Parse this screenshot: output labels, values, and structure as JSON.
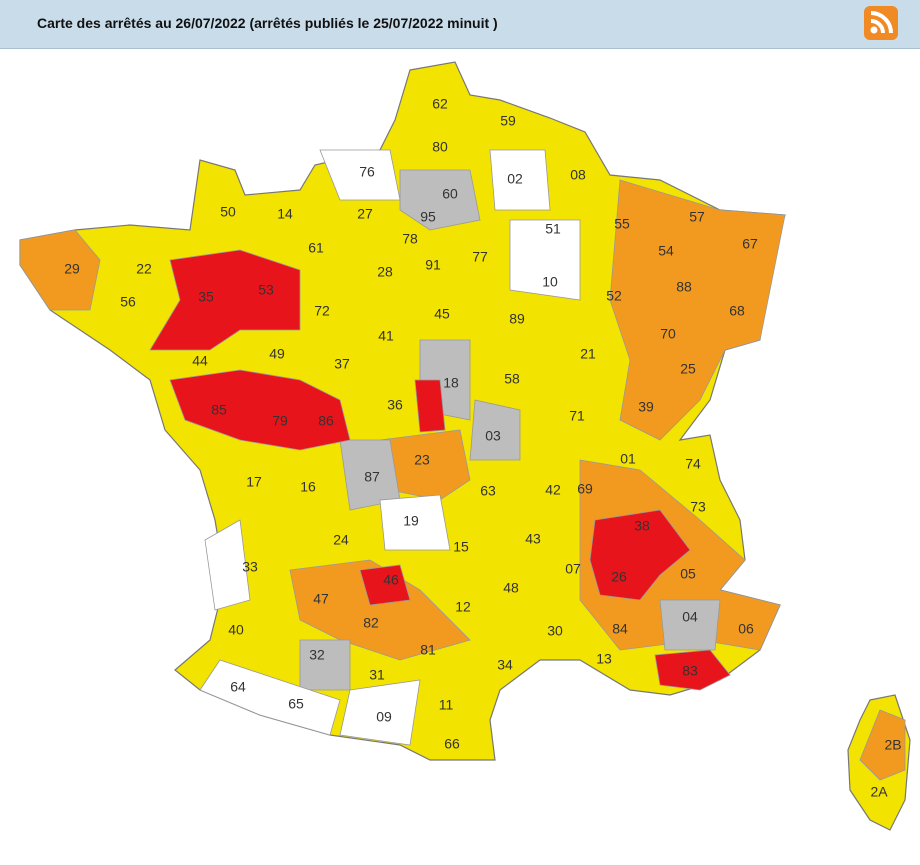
{
  "header": {
    "title": "Carte des arrêtés au 26/07/2022 (arrêtés publiés le 25/07/2022 minuit )"
  },
  "map": {
    "departments": [
      "62",
      "59",
      "80",
      "76",
      "02",
      "08",
      "60",
      "50",
      "14",
      "27",
      "95",
      "57",
      "55",
      "67",
      "51",
      "78",
      "61",
      "29",
      "22",
      "91",
      "77",
      "54",
      "28",
      "10",
      "88",
      "52",
      "56",
      "35",
      "53",
      "72",
      "45",
      "89",
      "68",
      "70",
      "41",
      "44",
      "49",
      "37",
      "21",
      "25",
      "18",
      "58",
      "85",
      "79",
      "86",
      "36",
      "39",
      "71",
      "03",
      "23",
      "01",
      "74",
      "87",
      "63",
      "42",
      "69",
      "17",
      "16",
      "73",
      "19",
      "38",
      "24",
      "15",
      "43",
      "26",
      "05",
      "33",
      "46",
      "07",
      "48",
      "47",
      "04",
      "12",
      "82",
      "84",
      "06",
      "40",
      "30",
      "81",
      "32",
      "13",
      "83",
      "34",
      "31",
      "64",
      "65",
      "11",
      "09",
      "66",
      "2B",
      "2A"
    ]
  }
}
